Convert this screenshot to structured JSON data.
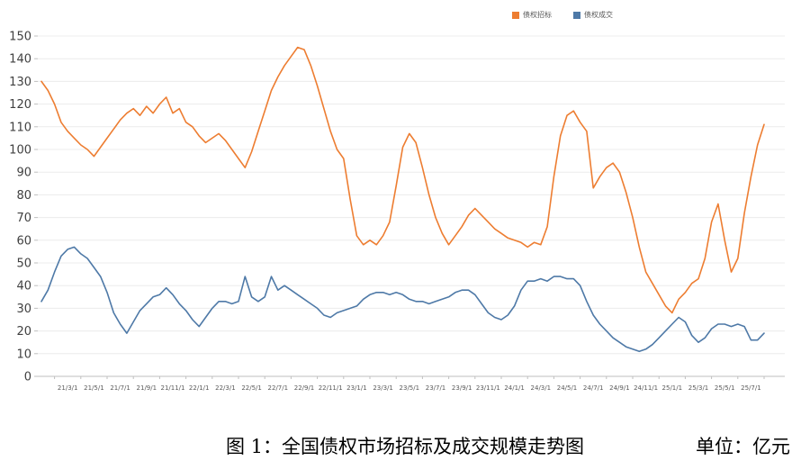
{
  "legend": {
    "series1_label": "债权招标",
    "series2_label": "债权成交"
  },
  "caption": {
    "title": "图 1：全国债权市场招标及成交规模走势图",
    "unit": "单位：亿元"
  },
  "colors": {
    "bid_orange": "#ED7D31",
    "deal_blue": "#4E79A7",
    "gridline": "#ECECEC",
    "axis_line": "#BFBFBF",
    "x_tick_label": "#595959",
    "y_tick_label": "#404040"
  },
  "chart_data": {
    "type": "line",
    "title": "全国债权市场招标及成交规模走势图",
    "unit": "亿元",
    "grid": true,
    "legend_position": "top-center",
    "ylim": [
      0,
      150
    ],
    "y_ticks": [
      0,
      10,
      20,
      30,
      40,
      50,
      60,
      70,
      80,
      90,
      100,
      110,
      120,
      130,
      140,
      150
    ],
    "x_start": "2021-01",
    "x_end": "2025-08",
    "sample_interval_months": 0.5,
    "x_tick_labels": [
      "21/3/1",
      "21/5/1",
      "21/7/1",
      "21/9/1",
      "21/11/1",
      "22/1/1",
      "22/3/1",
      "22/5/1",
      "22/7/1",
      "22/9/1",
      "22/11/1",
      "23/1/1",
      "23/3/1",
      "23/5/1",
      "23/7/1",
      "23/9/1",
      "23/11/1",
      "24/1/1",
      "24/3/1",
      "24/5/1",
      "24/7/1",
      "24/9/1",
      "24/11/1",
      "25/1/1",
      "25/3/1",
      "25/5/1",
      "25/7/1"
    ],
    "series": [
      {
        "name": "债权招标",
        "color": "#ED7D31",
        "values": [
          130,
          126,
          120,
          112,
          108,
          105,
          102,
          100,
          97,
          101,
          105,
          109,
          113,
          116,
          118,
          115,
          119,
          116,
          120,
          123,
          116,
          118,
          112,
          110,
          106,
          103,
          105,
          107,
          104,
          100,
          96,
          92,
          99,
          108,
          117,
          126,
          132,
          137,
          141,
          145,
          144,
          137,
          128,
          118,
          108,
          100,
          96,
          78,
          62,
          58,
          60,
          58,
          62,
          68,
          84,
          101,
          107,
          103,
          92,
          80,
          70,
          63,
          58,
          62,
          66,
          71,
          74,
          71,
          68,
          65,
          63,
          61,
          60,
          59,
          57,
          59,
          58,
          66,
          88,
          106,
          115,
          117,
          112,
          108,
          83,
          88,
          92,
          94,
          90,
          81,
          70,
          57,
          46,
          41,
          36,
          31,
          28,
          34,
          37,
          41,
          43,
          52,
          68,
          76,
          60,
          46,
          52,
          72,
          88,
          102,
          111
        ]
      },
      {
        "name": "债权成交",
        "color": "#4E79A7",
        "values": [
          33,
          38,
          46,
          53,
          56,
          57,
          54,
          52,
          48,
          44,
          37,
          28,
          23,
          19,
          24,
          29,
          32,
          35,
          36,
          39,
          36,
          32,
          29,
          25,
          22,
          26,
          30,
          33,
          33,
          32,
          33,
          44,
          35,
          33,
          35,
          44,
          38,
          40,
          38,
          36,
          34,
          32,
          30,
          27,
          26,
          28,
          29,
          30,
          31,
          34,
          36,
          37,
          37,
          36,
          37,
          36,
          34,
          33,
          33,
          32,
          33,
          34,
          35,
          37,
          38,
          38,
          36,
          32,
          28,
          26,
          25,
          27,
          31,
          38,
          42,
          42,
          43,
          42,
          44,
          44,
          43,
          43,
          40,
          33,
          27,
          23,
          20,
          17,
          15,
          13,
          12,
          11,
          12,
          14,
          17,
          20,
          23,
          26,
          24,
          18,
          15,
          17,
          21,
          23,
          23,
          22,
          23,
          22,
          16,
          16,
          19
        ]
      }
    ]
  }
}
